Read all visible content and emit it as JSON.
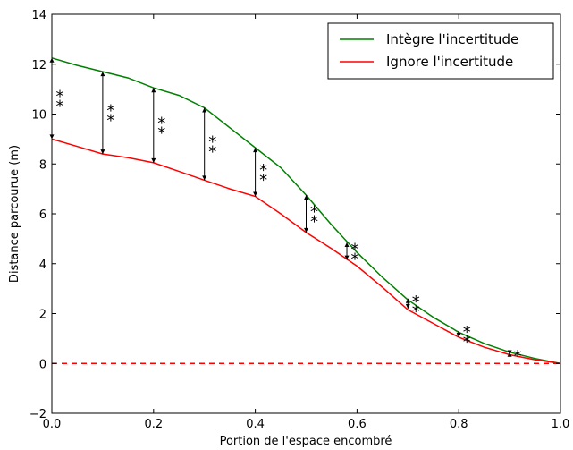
{
  "chart_data": {
    "type": "line",
    "title": "",
    "xlabel": "Portion de l'espace encombré",
    "ylabel": "Distance parcourue (m)",
    "xlim": [
      0.0,
      1.0
    ],
    "ylim": [
      -2,
      14
    ],
    "x_ticks": [
      "0.0",
      "0.2",
      "0.4",
      "0.6",
      "0.8",
      "1.0"
    ],
    "y_ticks": [
      "−2",
      "0",
      "2",
      "4",
      "6",
      "8",
      "10",
      "12",
      "14"
    ],
    "grid": false,
    "legend_position": "top-right",
    "series": [
      {
        "name": "Intègre l'incertitude",
        "color": "#008000",
        "x": [
          0.0,
          0.05,
          0.1,
          0.15,
          0.2,
          0.25,
          0.3,
          0.35,
          0.4,
          0.45,
          0.5,
          0.55,
          0.6,
          0.65,
          0.7,
          0.75,
          0.8,
          0.85,
          0.9,
          0.95,
          1.0
        ],
        "y": [
          12.25,
          11.95,
          11.7,
          11.45,
          11.05,
          10.75,
          10.25,
          9.45,
          8.65,
          7.85,
          6.75,
          5.55,
          4.45,
          3.45,
          2.55,
          1.85,
          1.25,
          0.8,
          0.45,
          0.2,
          0.0
        ]
      },
      {
        "name": "Ignore l'incertitude",
        "color": "#ff0000",
        "x": [
          0.0,
          0.05,
          0.1,
          0.15,
          0.2,
          0.25,
          0.3,
          0.35,
          0.4,
          0.45,
          0.5,
          0.55,
          0.6,
          0.65,
          0.7,
          0.75,
          0.8,
          0.85,
          0.9,
          0.95,
          1.0
        ],
        "y": [
          9.0,
          8.7,
          8.4,
          8.25,
          8.05,
          7.7,
          7.35,
          7.0,
          6.7,
          6.0,
          5.25,
          4.6,
          3.9,
          3.05,
          2.15,
          1.6,
          1.05,
          0.65,
          0.35,
          0.15,
          0.0
        ]
      }
    ],
    "reference_line": {
      "y": 0,
      "color": "#ff0000",
      "style": "dashed"
    },
    "significance_markers": [
      {
        "x": 0.0,
        "y_low": 9.0,
        "y_high": 12.25,
        "label": "**"
      },
      {
        "x": 0.1,
        "y_low": 8.4,
        "y_high": 11.7,
        "label": "**"
      },
      {
        "x": 0.2,
        "y_low": 8.05,
        "y_high": 11.05,
        "label": "**"
      },
      {
        "x": 0.3,
        "y_low": 7.35,
        "y_high": 10.25,
        "label": "**"
      },
      {
        "x": 0.4,
        "y_low": 6.7,
        "y_high": 8.65,
        "label": "**"
      },
      {
        "x": 0.5,
        "y_low": 5.25,
        "y_high": 6.75,
        "label": "**"
      },
      {
        "x": 0.58,
        "y_low": 4.15,
        "y_high": 4.85,
        "label": "**"
      },
      {
        "x": 0.7,
        "y_low": 2.2,
        "y_high": 2.6,
        "label": "**"
      },
      {
        "x": 0.8,
        "y_low": 1.05,
        "y_high": 1.3,
        "label": "**"
      },
      {
        "x": 0.9,
        "y_low": 0.35,
        "y_high": 0.45,
        "label": "*"
      }
    ]
  }
}
